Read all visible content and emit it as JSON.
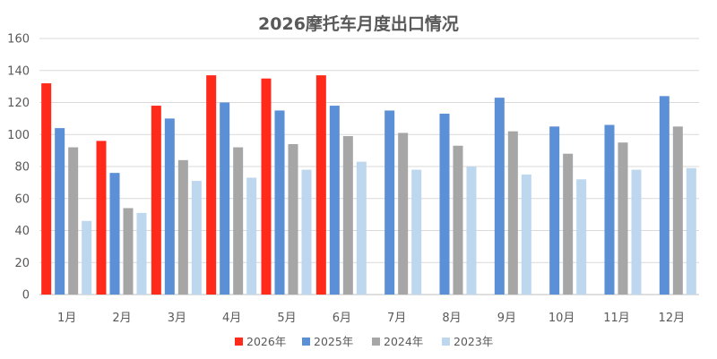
{
  "chart_data": {
    "type": "bar",
    "title": "2026摩托车月度出口情况",
    "xlabel": "",
    "ylabel": "",
    "categories": [
      "1月",
      "2月",
      "3月",
      "4月",
      "5月",
      "6月",
      "7月",
      "8月",
      "9月",
      "10月",
      "11月",
      "12月"
    ],
    "ylim": [
      0,
      160
    ],
    "yticks": [
      0,
      20,
      40,
      60,
      80,
      100,
      120,
      140,
      160
    ],
    "grid": true,
    "legend_position": "bottom",
    "series": [
      {
        "name": "2026年",
        "color": "#ff2a1a",
        "values": [
          132,
          96,
          118,
          137,
          135,
          137,
          null,
          null,
          null,
          null,
          null,
          null
        ]
      },
      {
        "name": "2025年",
        "color": "#5b8fd6",
        "values": [
          104,
          76,
          110,
          120,
          115,
          118,
          115,
          113,
          123,
          105,
          106,
          124
        ]
      },
      {
        "name": "2024年",
        "color": "#a6a6a6",
        "values": [
          92,
          54,
          84,
          92,
          94,
          99,
          101,
          93,
          102,
          88,
          95,
          105
        ]
      },
      {
        "name": "2023年",
        "color": "#bdd7ee",
        "values": [
          46,
          51,
          71,
          73,
          78,
          83,
          78,
          80,
          75,
          72,
          78,
          79
        ]
      }
    ]
  }
}
